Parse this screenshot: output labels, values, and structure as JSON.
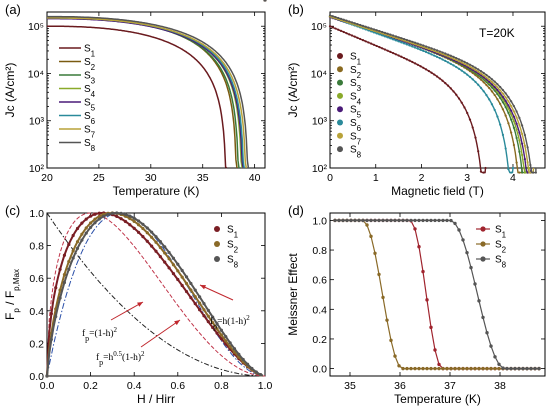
{
  "chart_data": [
    {
      "panel": "(a)",
      "type": "line",
      "xlabel": "Temperature (K)",
      "ylabel": "Jc (A/cm²)",
      "yscale": "log",
      "xlim": [
        20,
        41
      ],
      "ylim": [
        100,
        200000
      ],
      "xticks": [
        20,
        25,
        30,
        35,
        40
      ],
      "yticks": [
        {
          "value": 100,
          "label": "10²"
        },
        {
          "value": 1000,
          "label": "10³"
        },
        {
          "value": 10000,
          "label": "10⁴"
        },
        {
          "value": 100000,
          "label": "10⁵"
        }
      ],
      "legend_position": "left",
      "series": [
        {
          "name": "S1",
          "color": "#6a1a1e",
          "j0": 100000,
          "tc": 37.3
        },
        {
          "name": "S2",
          "color": "#7a5a10",
          "j0": 155000,
          "tc": 38.3
        },
        {
          "name": "S3",
          "color": "#3a7a3a",
          "j0": 150000,
          "tc": 38.5
        },
        {
          "name": "S4",
          "color": "#8aaa2a",
          "j0": 150000,
          "tc": 38.8
        },
        {
          "name": "S5",
          "color": "#4a1a78",
          "j0": 145000,
          "tc": 38.9
        },
        {
          "name": "S6",
          "color": "#2a8a9a",
          "j0": 150000,
          "tc": 39.0
        },
        {
          "name": "S7",
          "color": "#b8a238",
          "j0": 150000,
          "tc": 39.2
        },
        {
          "name": "S8",
          "color": "#555555",
          "j0": 160000,
          "tc": 39.4
        }
      ]
    },
    {
      "panel": "(b)",
      "type": "line",
      "xlabel": "Magnetic field (T)",
      "ylabel": "Jc (A/cm²)",
      "yscale": "log",
      "xlim": [
        0,
        4.7
      ],
      "ylim": [
        100,
        200000
      ],
      "xticks": [
        0,
        1,
        2,
        3,
        4
      ],
      "yticks": [
        {
          "value": 100,
          "label": "10²"
        },
        {
          "value": 1000,
          "label": "10³"
        },
        {
          "value": 10000,
          "label": "10⁴"
        },
        {
          "value": 100000,
          "label": "10⁵"
        }
      ],
      "annotation": "T=20K",
      "legend_position": "left",
      "series": [
        {
          "name": "S1",
          "color": "#6a1a1e",
          "j0": 100000,
          "hmax": 3.4
        },
        {
          "name": "S2",
          "color": "#8a6a20",
          "j0": 165000,
          "hmax": 4.2
        },
        {
          "name": "S3",
          "color": "#3a7a3a",
          "j0": 160000,
          "hmax": 4.3
        },
        {
          "name": "S4",
          "color": "#8aaa2a",
          "j0": 160000,
          "hmax": 4.35
        },
        {
          "name": "S5",
          "color": "#4a1a78",
          "j0": 155000,
          "hmax": 4.4
        },
        {
          "name": "S6",
          "color": "#2a8a9a",
          "j0": 160000,
          "hmax": 4.0
        },
        {
          "name": "S7",
          "color": "#b8a238",
          "j0": 160000,
          "hmax": 4.45
        },
        {
          "name": "S8",
          "color": "#555555",
          "j0": 170000,
          "hmax": 4.5
        }
      ]
    },
    {
      "panel": "(c)",
      "type": "line",
      "xlabel": "H / Hirr",
      "ylabel": "Fp / Fp,Max",
      "xlim": [
        0,
        1
      ],
      "ylim": [
        0,
        1
      ],
      "xticks": [
        0,
        0.2,
        0.4,
        0.6,
        0.8,
        1.0
      ],
      "xtick_labels": [
        "0.0",
        "0.2",
        "0.4",
        "0.6",
        "0.8",
        "1.0"
      ],
      "yticks": [
        0,
        0.2,
        0.4,
        0.6,
        0.8,
        1.0
      ],
      "ytick_labels": [
        "0.0",
        "0.2",
        "0.4",
        "0.6",
        "0.8",
        "1.0"
      ],
      "legend_position": "top-right",
      "series": [
        {
          "name": "S1",
          "color": "#7a1e24",
          "p": 0.55,
          "q": 1.6
        },
        {
          "name": "S2",
          "color": "#8a6a28",
          "p": 0.7,
          "q": 1.65
        },
        {
          "name": "S8",
          "color": "#555555",
          "p": 0.75,
          "q": 1.6
        }
      ],
      "models": [
        {
          "label": "fp=h(1-h)²",
          "p": 1,
          "q": 2,
          "color": "#2a4fa8"
        },
        {
          "label": "fp=(1-h)²",
          "p": 0,
          "q": 2,
          "color": "#222222"
        },
        {
          "label": "fp=h0.5(1-h)²",
          "p": 0.5,
          "q": 2,
          "color": "#c0354a"
        }
      ]
    },
    {
      "panel": "(d)",
      "type": "line",
      "xlabel": "Temperature (K)",
      "ylabel": "Meissner Effect",
      "xlim": [
        34.6,
        38.9
      ],
      "ylim": [
        -0.05,
        1.05
      ],
      "xticks": [
        35,
        36,
        37,
        38
      ],
      "yticks": [
        0,
        0.2,
        0.4,
        0.6,
        0.8,
        1.0
      ],
      "ytick_labels": [
        "0.0",
        "0.2",
        "0.4",
        "0.6",
        "0.8",
        "1.0"
      ],
      "legend_position": "top-right",
      "series": [
        {
          "name": "S1",
          "color": "#a0242e",
          "onset": 36.2,
          "end": 36.85
        },
        {
          "name": "S2",
          "color": "#8a6a28",
          "onset": 35.25,
          "end": 36.05
        },
        {
          "name": "S8",
          "color": "#555555",
          "onset": 37.0,
          "end": 38.1
        }
      ]
    }
  ]
}
